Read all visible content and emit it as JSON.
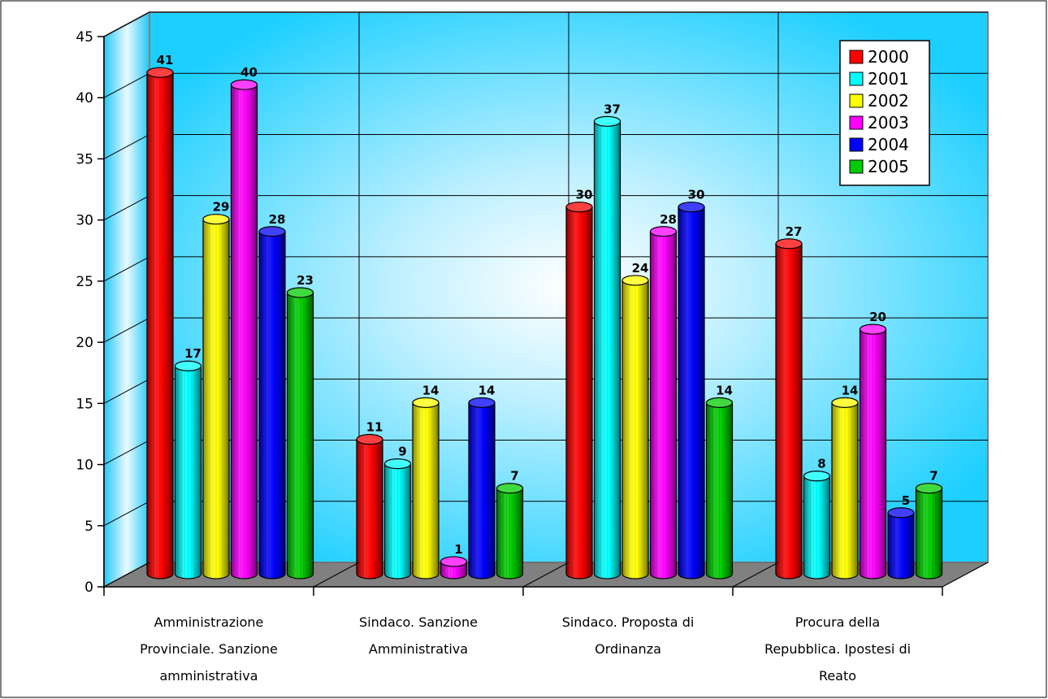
{
  "chart_data": {
    "type": "bar",
    "subtype": "3d-cylinder-clustered",
    "categories": [
      [
        "Amministrazione",
        "Provinciale. Sanzione",
        "amministrativa"
      ],
      [
        "Sindaco. Sanzione",
        "Amministrativa"
      ],
      [
        "Sindaco. Proposta di",
        "Ordinanza"
      ],
      [
        "Procura della",
        "Repubblica. Ipostesi di",
        "Reato"
      ]
    ],
    "series": [
      {
        "name": "2000",
        "color": "#ff0000",
        "values": [
          41,
          11,
          30,
          27
        ]
      },
      {
        "name": "2001",
        "color": "#00ffff",
        "values": [
          17,
          9,
          37,
          8
        ]
      },
      {
        "name": "2002",
        "color": "#ffff00",
        "values": [
          29,
          14,
          24,
          14
        ]
      },
      {
        "name": "2003",
        "color": "#ff00ff",
        "values": [
          40,
          1,
          28,
          20
        ]
      },
      {
        "name": "2004",
        "color": "#0000ff",
        "values": [
          28,
          14,
          30,
          5
        ]
      },
      {
        "name": "2005",
        "color": "#00cc00",
        "values": [
          23,
          7,
          14,
          7
        ]
      }
    ],
    "ylim": [
      0,
      45
    ],
    "yticks": [
      "0",
      "5",
      "10",
      "15",
      "20",
      "25",
      "30",
      "35",
      "40",
      "45"
    ],
    "grid": true,
    "legend_position": "top-right",
    "background_color": "#1ccfff",
    "floor_color": "#808080"
  }
}
